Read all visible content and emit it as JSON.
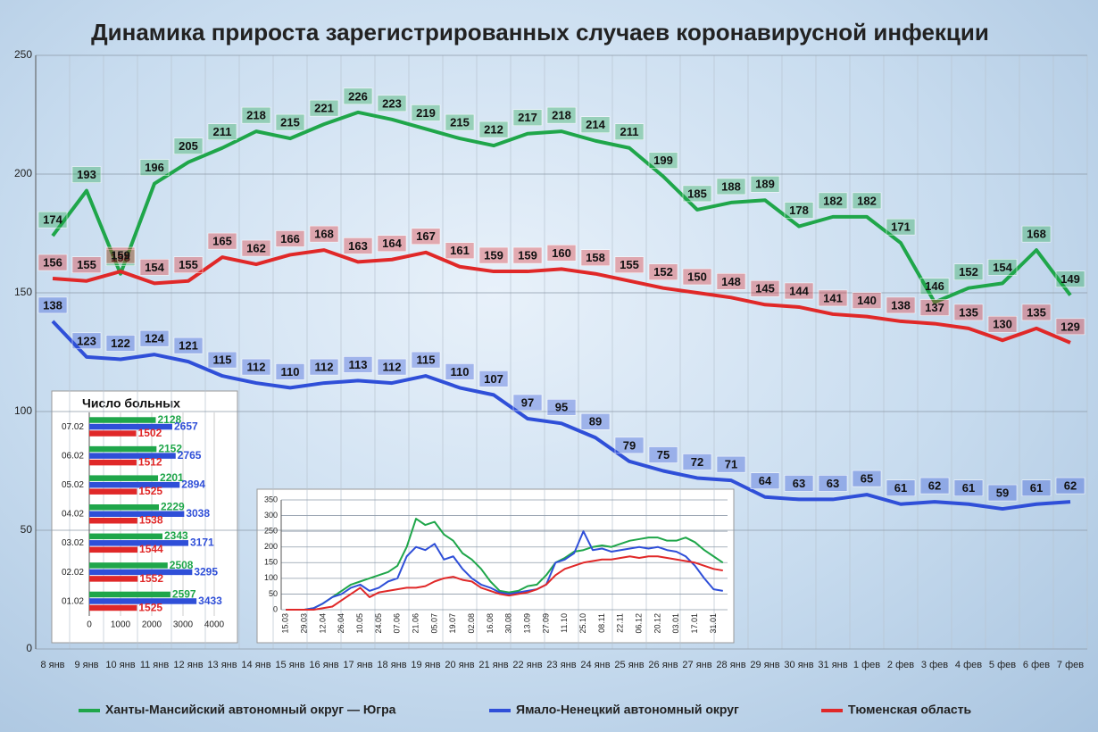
{
  "chart_data": [
    {
      "type": "line",
      "title": "Динамика прироста зарегистрированных случаев коронавирусной инфекции",
      "categories": [
        "8 янв",
        "9 янв",
        "10 янв",
        "11 янв",
        "12 янв",
        "13 янв",
        "14 янв",
        "15 янв",
        "16 янв",
        "17 янв",
        "18 янв",
        "19 янв",
        "20 янв",
        "21 янв",
        "22 янв",
        "23 янв",
        "24 янв",
        "25 янв",
        "26 янв",
        "27 янв",
        "28 янв",
        "29 янв",
        "30 янв",
        "31 янв",
        "1 фев",
        "2 фев",
        "3 фев",
        "4 фев",
        "5 фев",
        "6 фев",
        "7 фев"
      ],
      "series": [
        {
          "name": "Ханты-Мансийский автономный округ — Югра",
          "color": "#1fa64a",
          "values": [
            174,
            193,
            158,
            196,
            205,
            211,
            218,
            215,
            221,
            226,
            223,
            219,
            215,
            212,
            217,
            218,
            214,
            211,
            199,
            185,
            188,
            189,
            178,
            182,
            182,
            171,
            146,
            152,
            154,
            168,
            149
          ]
        },
        {
          "name": "Ямало-Ненецкий автономный округ",
          "color": "#2f4fd8",
          "values": [
            138,
            123,
            122,
            124,
            121,
            115,
            112,
            110,
            112,
            113,
            112,
            115,
            110,
            107,
            97,
            95,
            89,
            79,
            75,
            72,
            71,
            64,
            63,
            63,
            65,
            61,
            62,
            61,
            59,
            61,
            62
          ]
        },
        {
          "name": "Тюменская область",
          "color": "#e02828",
          "values": [
            156,
            155,
            159,
            154,
            155,
            165,
            162,
            166,
            168,
            163,
            164,
            167,
            161,
            159,
            159,
            160,
            158,
            155,
            152,
            150,
            148,
            145,
            144,
            141,
            140,
            138,
            137,
            135,
            130,
            135,
            129
          ]
        }
      ],
      "ylim": [
        0,
        250
      ],
      "yticks": [
        0,
        50,
        100,
        150,
        200,
        250
      ],
      "grid": true,
      "legend": "bottom"
    },
    {
      "type": "hbar",
      "title": "Число больных",
      "categories": [
        "07.02",
        "06.02",
        "05.02",
        "04.02",
        "03.02",
        "02.02",
        "01.02"
      ],
      "series": [
        {
          "color": "#1fa64a",
          "values": [
            2128,
            2152,
            2201,
            2229,
            2343,
            2508,
            2597
          ]
        },
        {
          "color": "#2f4fd8",
          "values": [
            2657,
            2765,
            2894,
            3038,
            3171,
            3295,
            3433
          ]
        },
        {
          "color": "#e02828",
          "values": [
            1502,
            1512,
            1525,
            1538,
            1544,
            1552,
            1525
          ]
        }
      ],
      "xlim": [
        0,
        4000
      ],
      "xticks": [
        0,
        1000,
        2000,
        3000,
        4000
      ]
    },
    {
      "type": "line",
      "categories": [
        "15.03",
        null,
        "29.03",
        null,
        "12.04",
        null,
        "26.04",
        null,
        "10.05",
        null,
        "24.05",
        null,
        "07.06",
        null,
        "21.06",
        null,
        "05.07",
        null,
        "19.07",
        null,
        "02.08",
        null,
        "16.08",
        null,
        "30.08",
        null,
        "13.09",
        null,
        "27.09",
        null,
        "11.10",
        null,
        "25.10",
        null,
        "08.11",
        null,
        "22.11",
        null,
        "06.12",
        null,
        "20.12",
        null,
        "03.01",
        null,
        "17.01",
        null,
        "31.01",
        null
      ],
      "series": [
        {
          "color": "#1fa64a",
          "values": [
            0,
            0,
            0,
            5,
            20,
            40,
            60,
            80,
            90,
            100,
            110,
            120,
            140,
            200,
            290,
            270,
            280,
            240,
            220,
            180,
            160,
            130,
            90,
            60,
            55,
            60,
            75,
            80,
            110,
            150,
            165,
            185,
            190,
            200,
            205,
            200,
            210,
            220,
            225,
            230,
            230,
            220,
            220,
            230,
            215,
            190,
            170,
            150
          ]
        },
        {
          "color": "#2f4fd8",
          "values": [
            0,
            0,
            0,
            5,
            20,
            40,
            50,
            70,
            80,
            60,
            70,
            90,
            100,
            170,
            200,
            190,
            210,
            160,
            170,
            130,
            100,
            80,
            70,
            55,
            50,
            55,
            60,
            65,
            80,
            150,
            160,
            180,
            250,
            190,
            195,
            185,
            190,
            195,
            200,
            195,
            200,
            190,
            185,
            170,
            140,
            100,
            65,
            60
          ]
        },
        {
          "color": "#e02828",
          "values": [
            0,
            0,
            0,
            0,
            5,
            10,
            30,
            50,
            70,
            40,
            55,
            60,
            65,
            70,
            70,
            75,
            90,
            100,
            105,
            95,
            90,
            70,
            60,
            50,
            45,
            50,
            55,
            65,
            80,
            110,
            130,
            140,
            150,
            155,
            160,
            160,
            165,
            170,
            165,
            170,
            170,
            165,
            160,
            155,
            150,
            140,
            130,
            125
          ]
        }
      ],
      "ylim": [
        0,
        350
      ],
      "yticks": [
        0,
        50,
        100,
        150,
        200,
        250,
        300,
        350
      ],
      "grid": true
    }
  ]
}
